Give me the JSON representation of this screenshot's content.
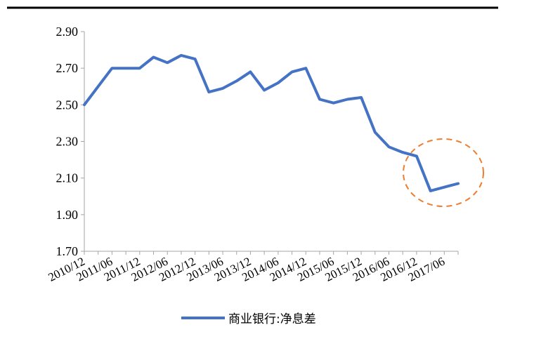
{
  "chart_data": {
    "type": "line",
    "title": "",
    "xlabel": "",
    "ylabel": "",
    "ylim": [
      1.7,
      2.9
    ],
    "yticks": [
      "2.90",
      "2.70",
      "2.50",
      "2.30",
      "2.10",
      "1.90",
      "1.70"
    ],
    "grid": false,
    "legend_position": "bottom",
    "x_tick_labels": [
      "2010/12",
      "2011/06",
      "2011/12",
      "2012/06",
      "2012/12",
      "2013/06",
      "2013/12",
      "2014/06",
      "2014/12",
      "2015/06",
      "2015/12",
      "2016/06",
      "2016/12",
      "2017/06"
    ],
    "x": [
      "2010/12",
      "2011/03",
      "2011/06",
      "2011/09",
      "2011/12",
      "2012/03",
      "2012/06",
      "2012/09",
      "2012/12",
      "2013/03",
      "2013/06",
      "2013/09",
      "2013/12",
      "2014/03",
      "2014/06",
      "2014/09",
      "2014/12",
      "2015/03",
      "2015/06",
      "2015/09",
      "2015/12",
      "2016/03",
      "2016/06",
      "2016/09",
      "2016/12",
      "2017/03",
      "2017/06",
      "2017/09"
    ],
    "series": [
      {
        "name": "商业银行:净息差",
        "color": "#4472C4",
        "values": [
          2.5,
          2.6,
          2.7,
          2.7,
          2.7,
          2.76,
          2.73,
          2.77,
          2.75,
          2.57,
          2.59,
          2.63,
          2.68,
          2.58,
          2.62,
          2.68,
          2.7,
          2.53,
          2.51,
          2.53,
          2.54,
          2.35,
          2.27,
          2.24,
          2.22,
          2.03,
          2.05,
          2.07
        ]
      }
    ],
    "annotation": {
      "shape": "dashed-circle",
      "color": "#ED7D31",
      "around_x": [
        "2017/03",
        "2017/09"
      ]
    }
  }
}
